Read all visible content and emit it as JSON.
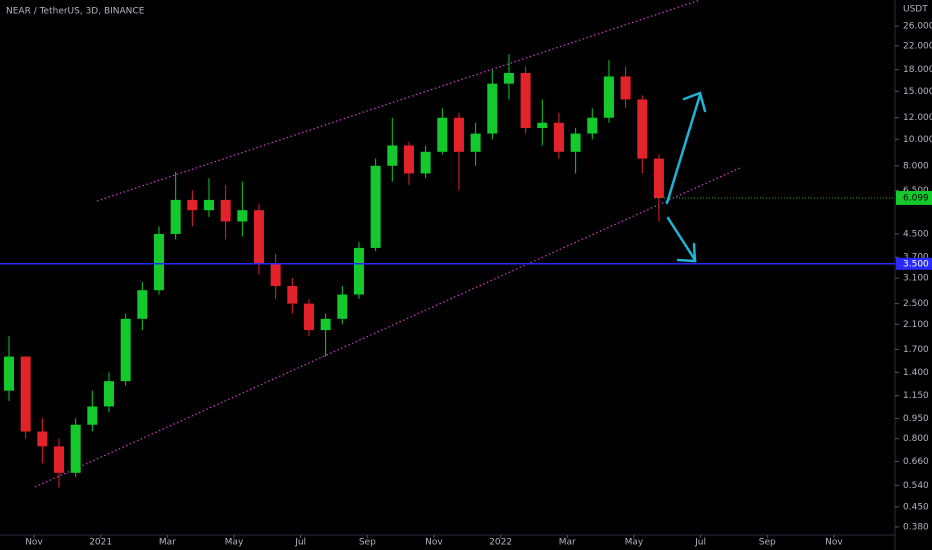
{
  "chart_data": {
    "type": "candlestick",
    "title": "NEAR / TetherUS, 3D, BINANCE",
    "y_axis_label": "USDT",
    "log_scale": true,
    "up_color": "#13c92b",
    "down_color": "#e3232a",
    "x": [
      "2020-10",
      "2020-10",
      "2020-11",
      "2020-11",
      "2020-12",
      "2020-12",
      "2021-01",
      "2021-01",
      "2021-02",
      "2021-02",
      "2021-03",
      "2021-03",
      "2021-04",
      "2021-04",
      "2021-05",
      "2021-05",
      "2021-06",
      "2021-06",
      "2021-07",
      "2021-07",
      "2021-08",
      "2021-08",
      "2021-09",
      "2021-09",
      "2021-10",
      "2021-10",
      "2021-11",
      "2021-11",
      "2021-12",
      "2021-12",
      "2022-01",
      "2022-01",
      "2022-02",
      "2022-02",
      "2022-03",
      "2022-03",
      "2022-04",
      "2022-04",
      "2022-05",
      "2022-05"
    ],
    "open": [
      1.2,
      1.6,
      0.85,
      0.75,
      0.6,
      0.9,
      1.05,
      1.3,
      2.2,
      2.8,
      4.5,
      6.0,
      5.5,
      6.0,
      5.0,
      5.5,
      3.5,
      2.9,
      2.5,
      2.0,
      2.2,
      2.7,
      4.0,
      8.0,
      9.5,
      7.5,
      9.0,
      12.0,
      9.0,
      10.5,
      16.0,
      17.5,
      11.0,
      11.5,
      9.0,
      10.5,
      12.0,
      17.0,
      14.0,
      8.5
    ],
    "high": [
      1.9,
      1.6,
      0.95,
      0.8,
      0.95,
      1.2,
      1.4,
      2.3,
      3.0,
      4.8,
      7.6,
      6.5,
      7.2,
      6.8,
      7.0,
      5.8,
      3.8,
      3.1,
      2.6,
      2.3,
      2.9,
      4.2,
      8.5,
      12.0,
      9.8,
      9.5,
      13.0,
      12.5,
      11.5,
      18.0,
      20.5,
      18.5,
      14.0,
      12.5,
      11.0,
      13.0,
      19.5,
      18.5,
      14.5,
      8.8
    ],
    "low": [
      1.1,
      0.8,
      0.65,
      0.53,
      0.58,
      0.85,
      1.0,
      1.25,
      2.0,
      2.7,
      4.3,
      4.8,
      5.2,
      4.3,
      4.4,
      3.2,
      2.6,
      2.3,
      1.9,
      1.6,
      2.1,
      2.6,
      3.9,
      7.0,
      6.8,
      7.2,
      8.8,
      6.5,
      8.0,
      10.0,
      14.0,
      10.5,
      9.5,
      8.5,
      7.5,
      10.0,
      11.5,
      13.0,
      7.5,
      5.0
    ],
    "close": [
      1.6,
      0.85,
      0.75,
      0.6,
      0.9,
      1.05,
      1.3,
      2.2,
      2.8,
      4.5,
      6.0,
      5.5,
      6.0,
      5.0,
      5.5,
      3.5,
      2.9,
      2.5,
      2.0,
      2.2,
      2.7,
      4.0,
      8.0,
      9.5,
      7.5,
      9.0,
      12.0,
      9.0,
      10.5,
      16.0,
      17.5,
      11.0,
      11.5,
      9.0,
      10.5,
      12.0,
      17.0,
      14.0,
      8.5,
      6.099
    ],
    "xlim": [
      "2020-10",
      "2022-12"
    ],
    "xticks": [
      {
        "value": "2020-11",
        "label": "Nov"
      },
      {
        "value": "2021-01",
        "label": "2021"
      },
      {
        "value": "2021-03",
        "label": "Mar"
      },
      {
        "value": "2021-05",
        "label": "May"
      },
      {
        "value": "2021-07",
        "label": "Jul"
      },
      {
        "value": "2021-09",
        "label": "Sep"
      },
      {
        "value": "2021-11",
        "label": "Nov"
      },
      {
        "value": "2022-01",
        "label": "2022"
      },
      {
        "value": "2022-03",
        "label": "Mar"
      },
      {
        "value": "2022-05",
        "label": "May"
      },
      {
        "value": "2022-07",
        "label": "Jul"
      },
      {
        "value": "2022-09",
        "label": "Sep"
      },
      {
        "value": "2022-11",
        "label": "Nov"
      }
    ],
    "ylim": [
      0.355,
      32.4
    ],
    "yticks": [
      {
        "value": 26,
        "label": "26.000"
      },
      {
        "value": 22,
        "label": "22.000"
      },
      {
        "value": 18,
        "label": "18.000"
      },
      {
        "value": 15,
        "label": "15.000"
      },
      {
        "value": 12,
        "label": "12.000"
      },
      {
        "value": 10,
        "label": "10.000"
      },
      {
        "value": 8,
        "label": "8.000"
      },
      {
        "value": 6.5,
        "label": "6.500"
      },
      {
        "value": 4.5,
        "label": "4.500"
      },
      {
        "value": 3.7,
        "label": "3.700"
      },
      {
        "value": 3.1,
        "label": "3.100"
      },
      {
        "value": 2.5,
        "label": "2.500"
      },
      {
        "value": 2.1,
        "label": "2.100"
      },
      {
        "value": 1.7,
        "label": "1.700"
      },
      {
        "value": 1.4,
        "label": "1.400"
      },
      {
        "value": 1.15,
        "label": "1.150"
      },
      {
        "value": 0.95,
        "label": "0.950"
      },
      {
        "value": 0.8,
        "label": "0.800"
      },
      {
        "value": 0.66,
        "label": "0.660"
      },
      {
        "value": 0.54,
        "label": "0.540"
      },
      {
        "value": 0.45,
        "label": "0.450"
      },
      {
        "value": 0.38,
        "label": "0.380"
      }
    ],
    "hline": {
      "value": 3.5,
      "label": "3.500",
      "color": "#2a2aff"
    },
    "last_price": {
      "value": 6.099,
      "label": "6.099"
    }
  }
}
